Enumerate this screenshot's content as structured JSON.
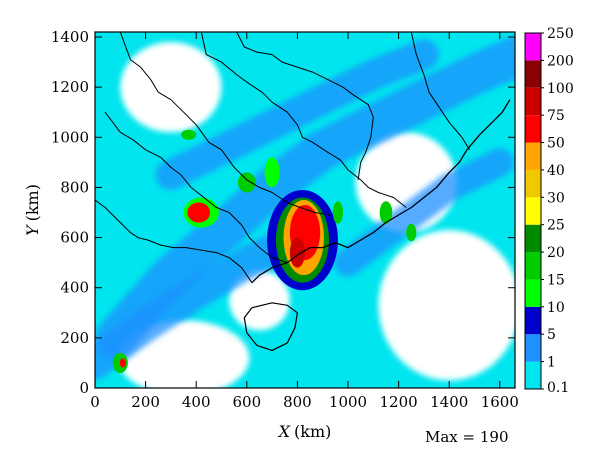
{
  "chart_data": {
    "type": "heatmap",
    "title": "",
    "xlabel_var": "X",
    "xlabel_unit": "(km)",
    "ylabel_var": "Y",
    "ylabel_unit": "(km)",
    "xlim": [
      0,
      1660
    ],
    "ylim": [
      0,
      1420
    ],
    "x_ticks": [
      0,
      200,
      400,
      600,
      800,
      1000,
      1200,
      1400,
      1600
    ],
    "y_ticks": [
      0,
      200,
      400,
      600,
      800,
      1000,
      1200,
      1400
    ],
    "colorbar": {
      "levels": [
        "0.1",
        "1",
        "5",
        "10",
        "15",
        "20",
        "25",
        "30",
        "40",
        "50",
        "75",
        "100",
        "200",
        "250"
      ],
      "colors": [
        "#00e5ee",
        "#1e90ff",
        "#0000cd",
        "#00ff00",
        "#00cd00",
        "#008b00",
        "#ffff00",
        "#eec900",
        "#ffa500",
        "#ff0000",
        "#cd0000",
        "#8b0000",
        "#ff00ff"
      ]
    },
    "max_text": "Max = 190",
    "max_value": 190,
    "features": [
      {
        "name": "main-band",
        "points": [
          [
            80,
            200
          ],
          [
            300,
            450
          ],
          [
            500,
            620
          ],
          [
            700,
            800
          ],
          [
            900,
            950
          ],
          [
            1200,
            1100
          ],
          [
            1500,
            1250
          ],
          [
            1660,
            1320
          ]
        ],
        "width": 160,
        "level": 1
      },
      {
        "name": "northwest-band",
        "points": [
          [
            300,
            850
          ],
          [
            500,
            950
          ],
          [
            700,
            1050
          ],
          [
            900,
            1150
          ],
          [
            1100,
            1250
          ],
          [
            1300,
            1330
          ]
        ],
        "width": 120,
        "level": 1
      },
      {
        "name": "south-band",
        "points": [
          [
            0,
            100
          ],
          [
            200,
            250
          ],
          [
            400,
            380
          ],
          [
            600,
            500
          ],
          [
            800,
            600
          ]
        ],
        "width": 130,
        "level": 1
      },
      {
        "name": "east-band",
        "points": [
          [
            1000,
            500
          ],
          [
            1200,
            650
          ],
          [
            1400,
            800
          ],
          [
            1600,
            900
          ]
        ],
        "width": 110,
        "level": 1
      }
    ],
    "blobs": [
      {
        "x": 820,
        "y": 590,
        "rx": 140,
        "ry": 200,
        "level": 2
      },
      {
        "x": 820,
        "y": 590,
        "rx": 105,
        "ry": 170,
        "level": 5
      },
      {
        "x": 825,
        "y": 600,
        "rx": 80,
        "ry": 150,
        "level": 8
      },
      {
        "x": 830,
        "y": 620,
        "rx": 60,
        "ry": 110,
        "level": 9
      },
      {
        "x": 800,
        "y": 540,
        "rx": 30,
        "ry": 60,
        "level": 10
      },
      {
        "x": 420,
        "y": 700,
        "rx": 70,
        "ry": 60,
        "level": 3
      },
      {
        "x": 410,
        "y": 700,
        "rx": 45,
        "ry": 40,
        "level": 9
      },
      {
        "x": 100,
        "y": 100,
        "rx": 30,
        "ry": 40,
        "level": 4
      },
      {
        "x": 110,
        "y": 100,
        "rx": 12,
        "ry": 18,
        "level": 9
      },
      {
        "x": 600,
        "y": 820,
        "rx": 35,
        "ry": 40,
        "level": 4
      },
      {
        "x": 370,
        "y": 1010,
        "rx": 30,
        "ry": 20,
        "level": 4
      },
      {
        "x": 1150,
        "y": 700,
        "rx": 25,
        "ry": 45,
        "level": 4
      },
      {
        "x": 1250,
        "y": 620,
        "rx": 20,
        "ry": 35,
        "level": 4
      },
      {
        "x": 700,
        "y": 860,
        "rx": 30,
        "ry": 60,
        "level": 3
      },
      {
        "x": 960,
        "y": 700,
        "rx": 20,
        "ry": 45,
        "level": 4
      }
    ],
    "holes": [
      {
        "x": 300,
        "y": 1200,
        "rx": 200,
        "ry": 180
      },
      {
        "x": 1230,
        "y": 820,
        "rx": 200,
        "ry": 200
      },
      {
        "x": 1400,
        "y": 330,
        "rx": 280,
        "ry": 300
      },
      {
        "x": 350,
        "y": 120,
        "rx": 260,
        "ry": 150
      },
      {
        "x": 650,
        "y": 350,
        "rx": 120,
        "ry": 120
      }
    ],
    "coastlines": [
      [
        [
          620,
          420
        ],
        [
          650,
          450
        ],
        [
          700,
          480
        ],
        [
          760,
          500
        ],
        [
          800,
          530
        ],
        [
          850,
          560
        ],
        [
          900,
          560
        ],
        [
          950,
          580
        ],
        [
          1000,
          560
        ],
        [
          1050,
          590
        ],
        [
          1100,
          620
        ],
        [
          1150,
          660
        ],
        [
          1200,
          690
        ],
        [
          1250,
          720
        ],
        [
          1300,
          760
        ],
        [
          1350,
          800
        ],
        [
          1400,
          860
        ],
        [
          1440,
          900
        ],
        [
          1470,
          950
        ],
        [
          1520,
          1010
        ],
        [
          1570,
          1060
        ],
        [
          1610,
          1100
        ],
        [
          1640,
          1150
        ]
      ]
    ],
    "borders": [
      [
        [
          100,
          1420
        ],
        [
          140,
          1310
        ],
        [
          180,
          1280
        ],
        [
          220,
          1230
        ],
        [
          250,
          1180
        ],
        [
          300,
          1150
        ],
        [
          350,
          1100
        ],
        [
          400,
          1050
        ],
        [
          450,
          980
        ],
        [
          500,
          950
        ],
        [
          550,
          880
        ],
        [
          600,
          830
        ],
        [
          650,
          800
        ],
        [
          700,
          780
        ],
        [
          760,
          740
        ],
        [
          810,
          720
        ],
        [
          870,
          700
        ],
        [
          930,
          690
        ]
      ],
      [
        [
          420,
          1420
        ],
        [
          440,
          1330
        ],
        [
          500,
          1300
        ],
        [
          560,
          1250
        ],
        [
          600,
          1220
        ],
        [
          660,
          1180
        ],
        [
          700,
          1140
        ],
        [
          760,
          1100
        ],
        [
          800,
          1050
        ],
        [
          820,
          1000
        ],
        [
          860,
          980
        ],
        [
          920,
          940
        ],
        [
          970,
          910
        ],
        [
          1000,
          870
        ],
        [
          1050,
          830
        ]
      ],
      [
        [
          560,
          1420
        ],
        [
          590,
          1360
        ],
        [
          640,
          1340
        ],
        [
          700,
          1330
        ],
        [
          740,
          1300
        ],
        [
          800,
          1280
        ],
        [
          860,
          1260
        ],
        [
          920,
          1230
        ],
        [
          980,
          1200
        ],
        [
          1020,
          1170
        ],
        [
          1080,
          1130
        ],
        [
          1100,
          1080
        ],
        [
          1090,
          1000
        ],
        [
          1070,
          940
        ],
        [
          1050,
          900
        ],
        [
          1040,
          830
        ]
      ],
      [
        [
          40,
          1100
        ],
        [
          100,
          1020
        ],
        [
          150,
          990
        ],
        [
          200,
          950
        ],
        [
          260,
          920
        ],
        [
          300,
          880
        ],
        [
          340,
          850
        ],
        [
          380,
          800
        ],
        [
          430,
          760
        ],
        [
          480,
          720
        ],
        [
          530,
          700
        ],
        [
          580,
          650
        ],
        [
          610,
          600
        ],
        [
          650,
          560
        ],
        [
          700,
          520
        ],
        [
          760,
          500
        ]
      ],
      [
        [
          1050,
          830
        ],
        [
          1080,
          800
        ],
        [
          1120,
          780
        ],
        [
          1180,
          760
        ],
        [
          1230,
          720
        ]
      ],
      [
        [
          1250,
          1420
        ],
        [
          1270,
          1330
        ],
        [
          1300,
          1250
        ],
        [
          1320,
          1180
        ],
        [
          1360,
          1120
        ],
        [
          1400,
          1060
        ],
        [
          1450,
          1000
        ],
        [
          1480,
          950
        ]
      ],
      [
        [
          0,
          750
        ],
        [
          40,
          720
        ],
        [
          80,
          680
        ],
        [
          110,
          650
        ],
        [
          140,
          620
        ],
        [
          170,
          600
        ],
        [
          210,
          590
        ],
        [
          260,
          570
        ],
        [
          310,
          560
        ],
        [
          360,
          560
        ],
        [
          420,
          550
        ],
        [
          480,
          540
        ],
        [
          530,
          520
        ],
        [
          580,
          480
        ],
        [
          620,
          420
        ]
      ]
    ],
    "islands": [
      [
        [
          620,
          320
        ],
        [
          700,
          340
        ],
        [
          760,
          330
        ],
        [
          800,
          300
        ],
        [
          790,
          240
        ],
        [
          760,
          180
        ],
        [
          700,
          150
        ],
        [
          640,
          170
        ],
        [
          600,
          220
        ],
        [
          590,
          280
        ],
        [
          620,
          320
        ]
      ]
    ]
  }
}
